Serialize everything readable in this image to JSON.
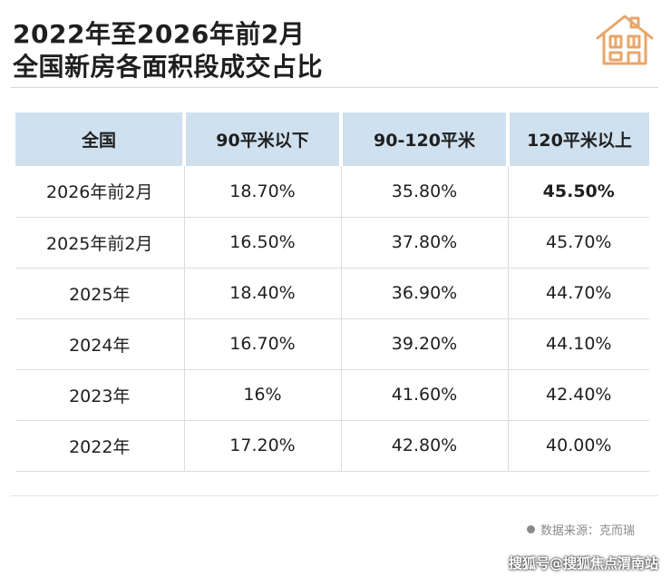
{
  "title": {
    "line1": "2022年至2026年前2月",
    "line2": "全国新房各面积段成交占比"
  },
  "colors": {
    "header_bg": "#cfe0ef",
    "highlight": "#e0302c",
    "icon": "#e8a66a"
  },
  "icon": "house-icon",
  "table": {
    "headers": [
      "全国",
      "90平米以下",
      "90-120平米",
      "120平米以上"
    ],
    "rows": [
      {
        "label": "2026年前2月",
        "cells": [
          "18.70%",
          "35.80%",
          "45.50%"
        ]
      },
      {
        "label": "2025年前2月",
        "cells": [
          "16.50%",
          "37.80%",
          "45.70%"
        ]
      },
      {
        "label": "2025年",
        "cells": [
          "18.40%",
          "36.90%",
          "44.70%"
        ]
      },
      {
        "label": "2024年",
        "cells": [
          "16.70%",
          "39.20%",
          "44.10%"
        ]
      },
      {
        "label": "2023年",
        "cells": [
          "16%",
          "41.60%",
          "42.40%"
        ]
      },
      {
        "label": "2022年",
        "cells": [
          "17.20%",
          "42.80%",
          "40.00%"
        ]
      }
    ]
  },
  "source": "数据来源：克而瑞",
  "credit": "搜狐号@搜狐焦点渭南站"
}
